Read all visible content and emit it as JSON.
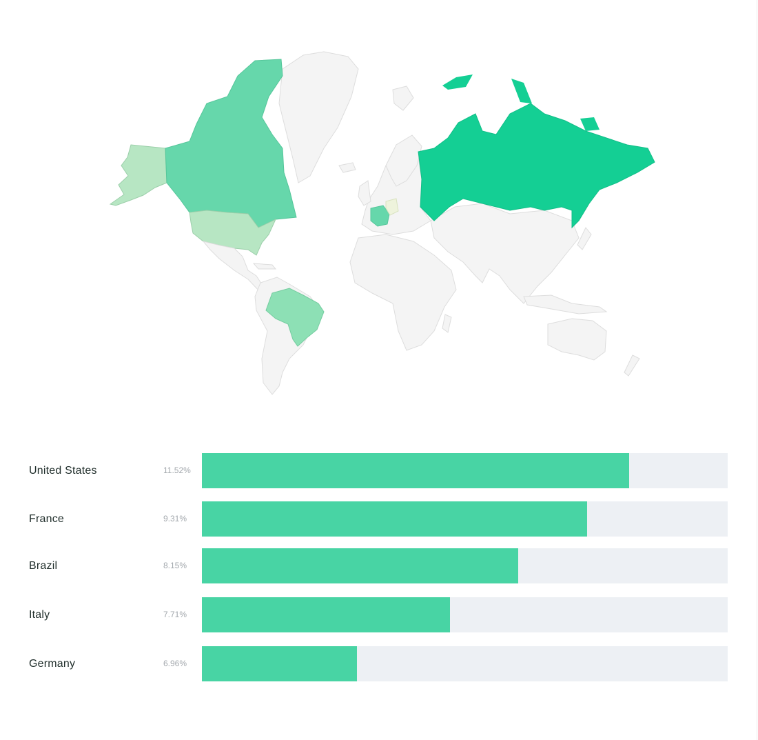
{
  "colors": {
    "bar_fill": "#48d4a4",
    "bar_track": "#edf0f4",
    "map_base": "#f4f4f4",
    "map_border": "#dddddd",
    "scale_high": "#14cf94",
    "scale_mid": "#66d7ab",
    "scale_low": "#b7e6c3",
    "scale_lowest": "#eef3dc"
  },
  "map": {
    "highlighted_countries": [
      {
        "country": "Russia",
        "level": "high"
      },
      {
        "country": "Canada",
        "level": "mid"
      },
      {
        "country": "France",
        "level": "mid"
      },
      {
        "country": "Brazil",
        "level": "mid-low"
      },
      {
        "country": "United States",
        "level": "low"
      },
      {
        "country": "Germany",
        "level": "lowest"
      }
    ]
  },
  "countries": [
    {
      "name": "United States",
      "percent": "11.52%",
      "bar_fraction": 0.813
    },
    {
      "name": "France",
      "percent": "9.31%",
      "bar_fraction": 0.733
    },
    {
      "name": "Brazil",
      "percent": "8.15%",
      "bar_fraction": 0.602
    },
    {
      "name": "Italy",
      "percent": "7.71%",
      "bar_fraction": 0.472
    },
    {
      "name": "Germany",
      "percent": "6.96%",
      "bar_fraction": 0.295
    }
  ]
}
